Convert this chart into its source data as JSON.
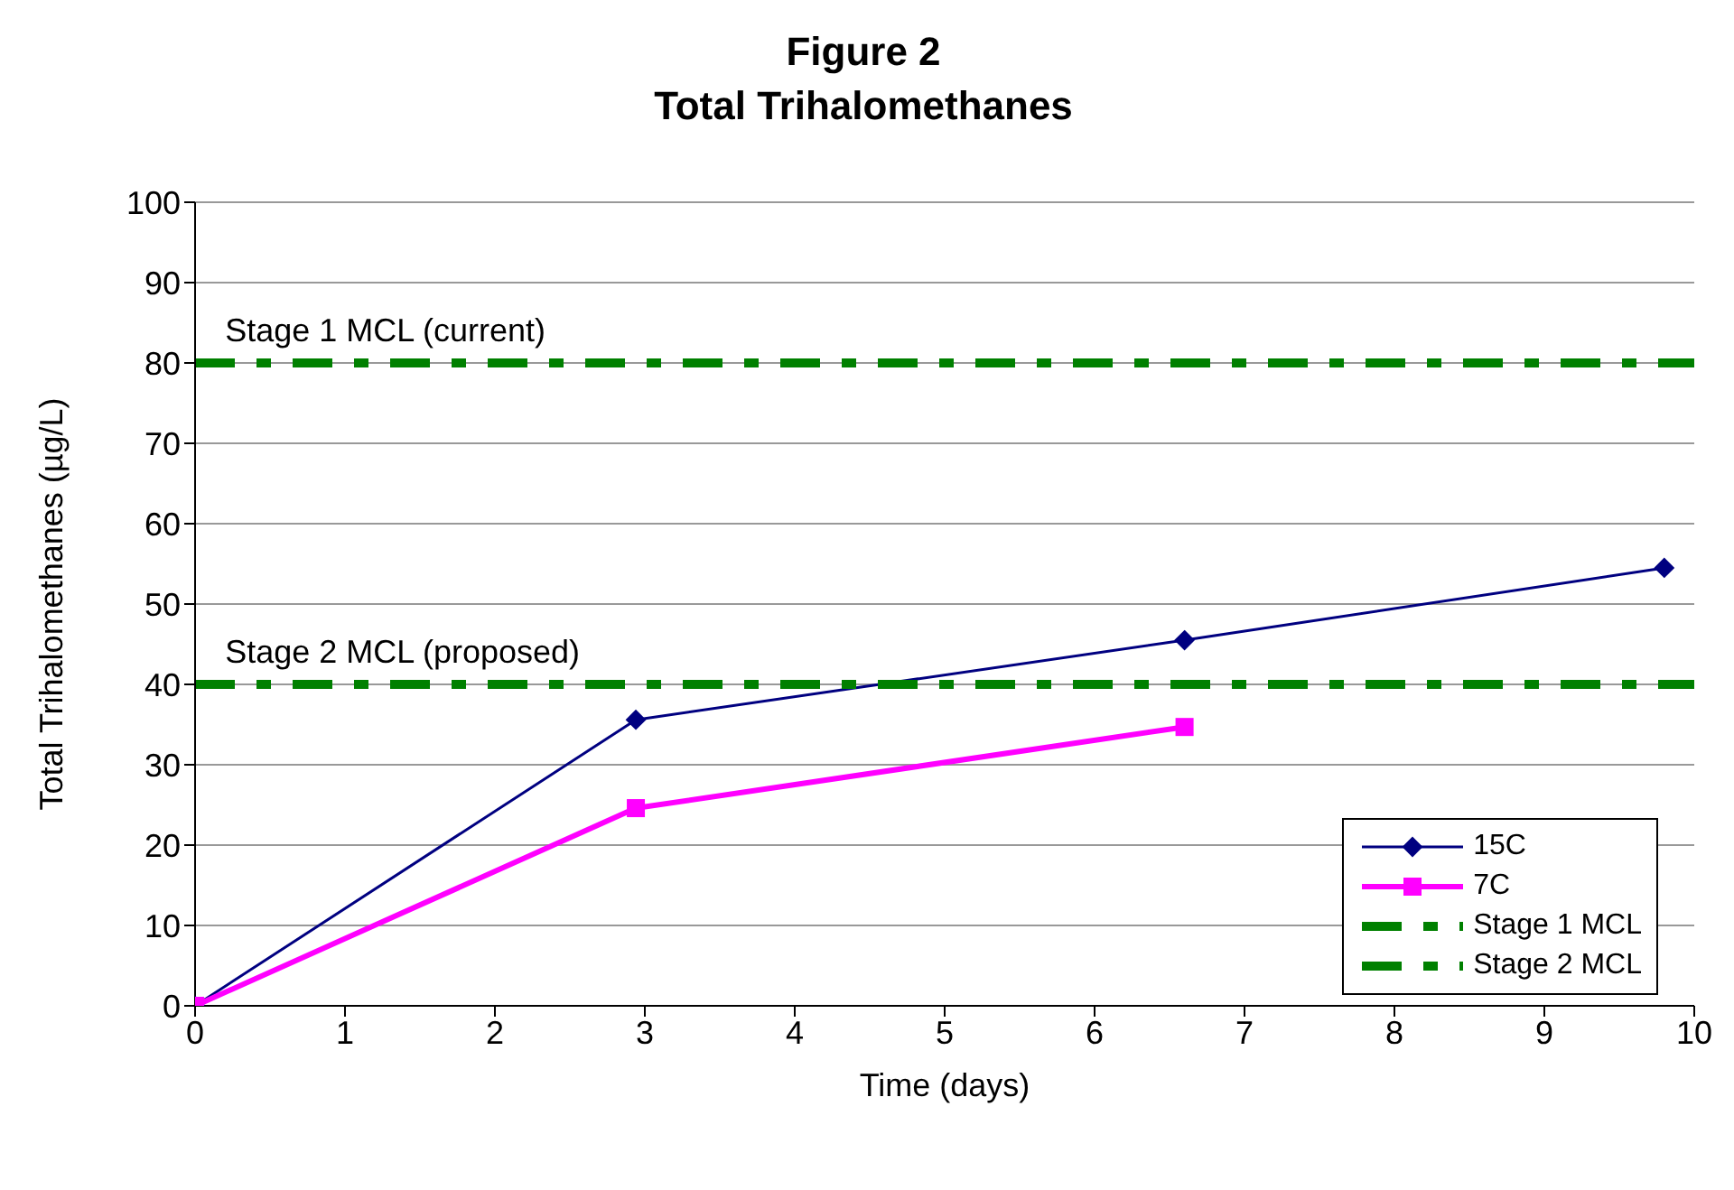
{
  "chart_data": {
    "type": "line",
    "title": "Figure 2",
    "subtitle": "Total Trihalomethanes",
    "xlabel": "Time (days)",
    "ylabel": "Total Trihalomethanes (µg/L)",
    "xlim": [
      0,
      10
    ],
    "xticks": [
      0,
      1,
      2,
      3,
      4,
      5,
      6,
      7,
      8,
      9,
      10
    ],
    "ylim": [
      0,
      100
    ],
    "yticks": [
      0,
      10,
      20,
      30,
      40,
      50,
      60,
      70,
      80,
      90,
      100
    ],
    "grid": "y",
    "legend": "bottom right",
    "series": [
      {
        "name": "15C",
        "color": "#000080",
        "marker": "diamond",
        "line_style": "solid",
        "x": [
          0,
          2.94,
          6.6,
          9.8
        ],
        "values": [
          0,
          35.6,
          45.5,
          54.5
        ]
      },
      {
        "name": "7C",
        "color": "#ff00ff",
        "marker": "square",
        "line_style": "solid",
        "x": [
          0,
          2.94,
          6.6
        ],
        "values": [
          0,
          24.6,
          34.7
        ]
      },
      {
        "name": "Stage 1 MCL",
        "color": "#008000",
        "marker": "none",
        "line_style": "dashed",
        "x": [
          0,
          10
        ],
        "values": [
          80,
          80
        ]
      },
      {
        "name": "Stage 2 MCL",
        "color": "#008000",
        "marker": "none",
        "line_style": "dashed",
        "x": [
          0,
          10
        ],
        "values": [
          40,
          40
        ]
      }
    ],
    "annotations": [
      {
        "text": "Stage 1 MCL (current)",
        "x": 0.2,
        "y": 80
      },
      {
        "text": "Stage 2 MCL (proposed)",
        "x": 0.2,
        "y": 40
      }
    ]
  }
}
